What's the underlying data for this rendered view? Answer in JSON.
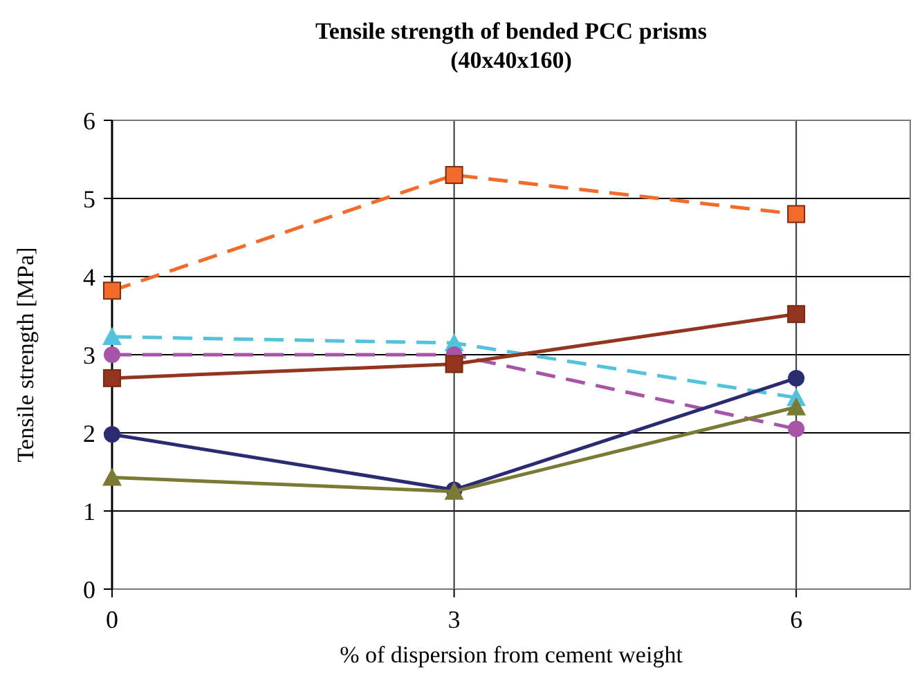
{
  "chart_data": {
    "type": "line",
    "title": "Tensile strength of bended PCC prisms\n(40x40x160)",
    "xlabel": "% of dispersion from cement weight",
    "ylabel": "Tensile strength [MPa]",
    "x": [
      0,
      3,
      6
    ],
    "xlim": [
      0,
      7
    ],
    "xticks": [
      0,
      3,
      6
    ],
    "ylim": [
      0,
      6
    ],
    "yticks": [
      0,
      1,
      2,
      3,
      4,
      5,
      6
    ],
    "grid": true,
    "series": [
      {
        "color": "#f26b2a",
        "values": [
          3.82,
          5.3,
          4.8
        ],
        "marker": "square",
        "line_style": "dashed"
      },
      {
        "color": "#52c3db",
        "values": [
          3.23,
          3.15,
          2.45
        ],
        "marker": "triangle",
        "line_style": "dashed"
      },
      {
        "color": "#a855a8",
        "values": [
          3.0,
          3.0,
          2.05
        ],
        "marker": "circle",
        "line_style": "dashed"
      },
      {
        "color": "#93351f",
        "values": [
          2.7,
          2.88,
          3.52
        ],
        "marker": "square",
        "line_style": "solid"
      },
      {
        "color": "#2b2b72",
        "values": [
          1.98,
          1.27,
          2.7
        ],
        "marker": "circle",
        "line_style": "solid"
      },
      {
        "color": "#7a7a35",
        "values": [
          1.43,
          1.25,
          2.33
        ],
        "marker": "triangle",
        "line_style": "solid"
      }
    ]
  }
}
